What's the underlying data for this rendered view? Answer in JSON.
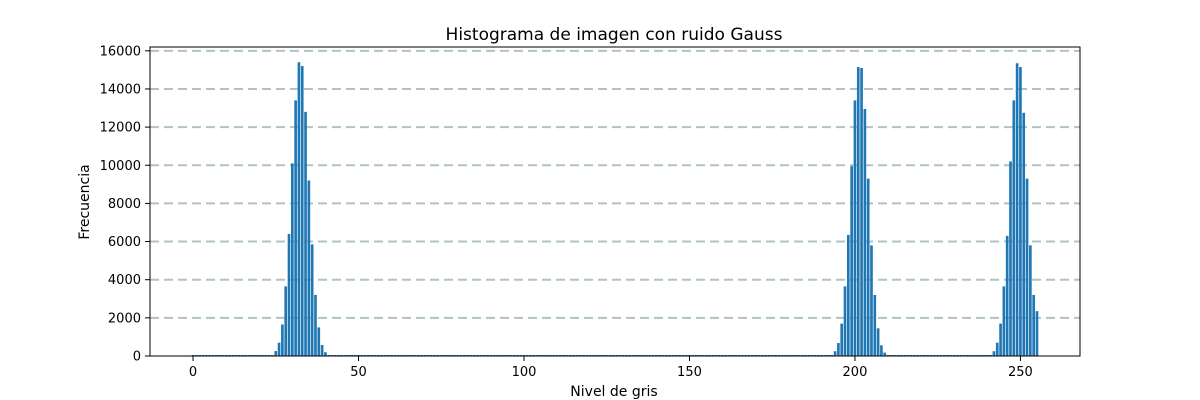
{
  "chart_data": {
    "type": "bar",
    "title": "Histograma de imagen con ruido Gauss",
    "xlabel": "Nivel de gris",
    "ylabel": "Frecuencia",
    "xlim": [
      -13,
      268
    ],
    "ylim": [
      0,
      16200
    ],
    "xticks": [
      0,
      50,
      100,
      150,
      200,
      250
    ],
    "yticks": [
      0,
      2000,
      4000,
      6000,
      8000,
      10000,
      12000,
      14000,
      16000
    ],
    "grid": {
      "axis": "y",
      "style": "dashed",
      "color": "#b0c4c4"
    },
    "bar_color": "#1f77b4",
    "bars": [
      {
        "x": 24,
        "y": 40
      },
      {
        "x": 25,
        "y": 260
      },
      {
        "x": 26,
        "y": 700
      },
      {
        "x": 27,
        "y": 1650
      },
      {
        "x": 28,
        "y": 3650
      },
      {
        "x": 29,
        "y": 6400
      },
      {
        "x": 30,
        "y": 10100
      },
      {
        "x": 31,
        "y": 13400
      },
      {
        "x": 32,
        "y": 15400
      },
      {
        "x": 33,
        "y": 15200
      },
      {
        "x": 34,
        "y": 12800
      },
      {
        "x": 35,
        "y": 9200
      },
      {
        "x": 36,
        "y": 5850
      },
      {
        "x": 37,
        "y": 3200
      },
      {
        "x": 38,
        "y": 1500
      },
      {
        "x": 39,
        "y": 580
      },
      {
        "x": 40,
        "y": 200
      },
      {
        "x": 41,
        "y": 40
      },
      {
        "x": 193,
        "y": 40
      },
      {
        "x": 194,
        "y": 250
      },
      {
        "x": 195,
        "y": 680
      },
      {
        "x": 196,
        "y": 1700
      },
      {
        "x": 197,
        "y": 3650
      },
      {
        "x": 198,
        "y": 6350
      },
      {
        "x": 199,
        "y": 9950
      },
      {
        "x": 200,
        "y": 13400
      },
      {
        "x": 201,
        "y": 15150
      },
      {
        "x": 202,
        "y": 15100
      },
      {
        "x": 203,
        "y": 12950
      },
      {
        "x": 204,
        "y": 9300
      },
      {
        "x": 205,
        "y": 5800
      },
      {
        "x": 206,
        "y": 3200
      },
      {
        "x": 207,
        "y": 1450
      },
      {
        "x": 208,
        "y": 560
      },
      {
        "x": 209,
        "y": 180
      },
      {
        "x": 210,
        "y": 40
      },
      {
        "x": 241,
        "y": 40
      },
      {
        "x": 242,
        "y": 250
      },
      {
        "x": 243,
        "y": 700
      },
      {
        "x": 244,
        "y": 1700
      },
      {
        "x": 245,
        "y": 3650
      },
      {
        "x": 246,
        "y": 6300
      },
      {
        "x": 247,
        "y": 10200
      },
      {
        "x": 248,
        "y": 13400
      },
      {
        "x": 249,
        "y": 15350
      },
      {
        "x": 250,
        "y": 15150
      },
      {
        "x": 251,
        "y": 12750
      },
      {
        "x": 252,
        "y": 9300
      },
      {
        "x": 253,
        "y": 5800
      },
      {
        "x": 254,
        "y": 3200
      },
      {
        "x": 255,
        "y": 2350
      }
    ]
  }
}
